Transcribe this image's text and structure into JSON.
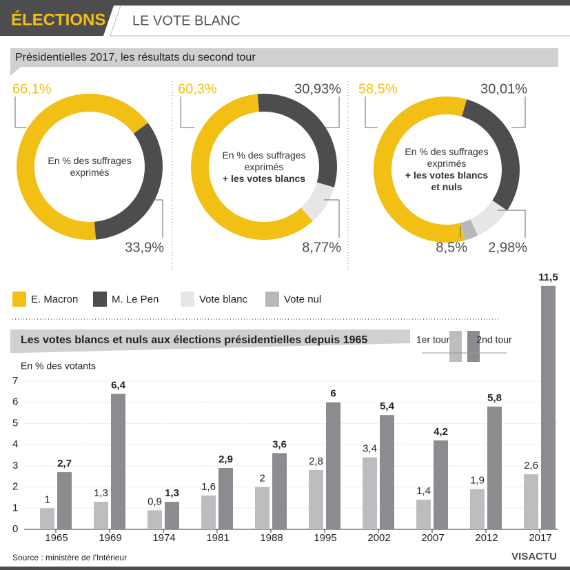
{
  "header": {
    "title": "ÉLECTIONS",
    "subtitle": "LE VOTE BLANC"
  },
  "section_title": "Présidentielles 2017, les résultats du second tour",
  "legend": [
    {
      "name": "E. Macron",
      "color": "#f2c014"
    },
    {
      "name": "M. Le Pen",
      "color": "#4d4d4f"
    },
    {
      "name": "Vote blanc",
      "color": "#e6e6e6"
    },
    {
      "name": "Vote nul",
      "color": "#b8b8ba"
    }
  ],
  "chart_data": [
    {
      "type": "pie",
      "values": [
        66.1,
        33.9
      ],
      "value_labels": [
        "66,1%",
        "33,9%"
      ],
      "colors": [
        "#f2c014",
        "#4d4d4f"
      ],
      "center_text": "En % des suffrages exprimés"
    },
    {
      "type": "pie",
      "values": [
        60.3,
        30.93,
        8.77
      ],
      "value_labels": [
        "60,3%",
        "30,93%",
        "8,77%"
      ],
      "colors": [
        "#f2c014",
        "#4d4d4f",
        "#e6e6e6"
      ],
      "center_text": "En % des suffrages exprimés",
      "center_text_bold": "+ les votes blancs"
    },
    {
      "type": "pie",
      "values": [
        58.5,
        30.01,
        8.5,
        2.98
      ],
      "value_labels": [
        "58,5%",
        "30,01%",
        "8,5%",
        "2,98%"
      ],
      "colors": [
        "#f2c014",
        "#4d4d4f",
        "#e6e6e6",
        "#b8b8ba"
      ],
      "center_text": "En % des suffrages exprimés",
      "center_text_bold": "+ les votes blancs et nuls"
    },
    {
      "type": "bar",
      "title": "Les votes blancs et nuls aux élections présidentielles depuis 1965",
      "y_label": "En % des votants",
      "categories": [
        "1965",
        "1969",
        "1974",
        "1981",
        "1988",
        "1995",
        "2002",
        "2007",
        "2012",
        "2017"
      ],
      "series": [
        {
          "name": "1er tour",
          "color": "#bdbdc0",
          "values": [
            1,
            1.3,
            0.9,
            1.6,
            2,
            2.8,
            3.4,
            1.4,
            1.9,
            2.6
          ],
          "value_labels": [
            "1",
            "1,3",
            "0,9",
            "1,6",
            "2",
            "2,8",
            "3,4",
            "1,4",
            "1,9",
            "2,6"
          ]
        },
        {
          "name": "2nd tour",
          "color": "#8c8c90",
          "values": [
            2.7,
            6.4,
            1.3,
            2.9,
            3.6,
            6,
            5.4,
            4.2,
            5.8,
            11.5
          ],
          "value_labels": [
            "2,7",
            "6,4",
            "1,3",
            "2,9",
            "3,6",
            "6",
            "5,4",
            "4,2",
            "5,8",
            "11,5"
          ]
        }
      ],
      "ylim": [
        0,
        7
      ],
      "yticks": [
        0,
        1,
        2,
        3,
        4,
        5,
        6,
        7
      ]
    }
  ],
  "source": "Source : ministère de l’Intérieur",
  "logo": "VISACTU"
}
